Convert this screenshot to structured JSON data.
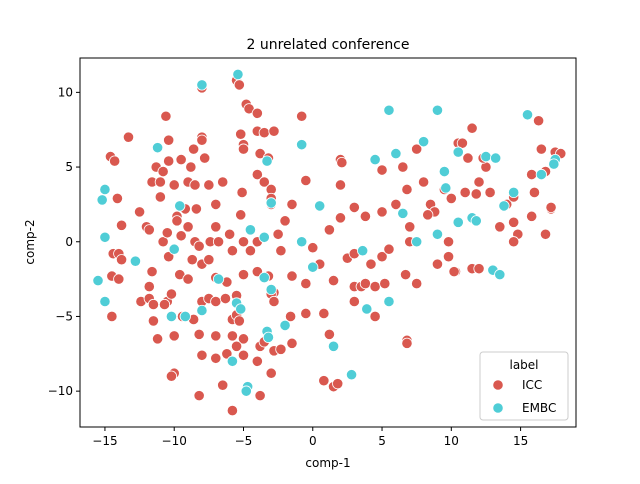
{
  "chart_data": {
    "type": "scatter",
    "title": "2 unrelated conference",
    "xlabel": "comp-1",
    "ylabel": "comp-2",
    "xlim": [
      -16.8,
      19.0
    ],
    "ylim": [
      -12.4,
      12.3
    ],
    "xticks": [
      -15,
      -10,
      -5,
      0,
      5,
      10,
      15
    ],
    "yticks": [
      -10,
      -5,
      0,
      5,
      10
    ],
    "grid": false,
    "legend": {
      "title": "label",
      "placement": "lower-right"
    },
    "series": [
      {
        "name": "ICC",
        "color": "#d9584f",
        "points": [
          [
            -14.6,
            5.7
          ],
          [
            -14.3,
            5.4
          ],
          [
            -13.3,
            7.0
          ],
          [
            -14.1,
            2.9
          ],
          [
            -13.8,
            1.1
          ],
          [
            -14.4,
            -0.8
          ],
          [
            -14.0,
            -0.8
          ],
          [
            -13.8,
            -1.2
          ],
          [
            -14.5,
            -2.3
          ],
          [
            -14.0,
            -2.5
          ],
          [
            -14.5,
            -5.0
          ],
          [
            -12.8,
            -1.3
          ],
          [
            -12.5,
            2.0
          ],
          [
            -12.0,
            1.0
          ],
          [
            -11.8,
            0.8
          ],
          [
            -11.6,
            4.0
          ],
          [
            -11.3,
            5.0
          ],
          [
            -11.0,
            3.0
          ],
          [
            -11.0,
            4.0
          ],
          [
            -10.8,
            4.7
          ],
          [
            -10.8,
            0.0
          ],
          [
            -10.5,
            0.6
          ],
          [
            -10.4,
            -1.0
          ],
          [
            -11.6,
            -2.0
          ],
          [
            -11.8,
            -3.0
          ],
          [
            -12.4,
            -4.0
          ],
          [
            -11.8,
            -3.8
          ],
          [
            -10.5,
            -4.0
          ],
          [
            -10.2,
            -3.5
          ],
          [
            -11.5,
            -5.3
          ],
          [
            -11.2,
            -6.5
          ],
          [
            -10.0,
            -6.3
          ],
          [
            -10.0,
            -8.8
          ],
          [
            -10.2,
            -9.0
          ],
          [
            -11.5,
            -4.2
          ],
          [
            -10.7,
            -4.2
          ],
          [
            -10.6,
            8.4
          ],
          [
            -10.4,
            6.8
          ],
          [
            -10.4,
            5.4
          ],
          [
            -10.0,
            3.8
          ],
          [
            -9.5,
            5.5
          ],
          [
            -9.0,
            4.0
          ],
          [
            -8.8,
            5.0
          ],
          [
            -8.6,
            6.2
          ],
          [
            -8.0,
            7.0
          ],
          [
            -8.0,
            6.8
          ],
          [
            -7.8,
            5.6
          ],
          [
            -8.0,
            10.3
          ],
          [
            -5.5,
            10.8
          ],
          [
            -5.3,
            10.5
          ],
          [
            -4.8,
            9.2
          ],
          [
            -4.6,
            8.9
          ],
          [
            -4.0,
            8.6
          ],
          [
            -4.0,
            7.4
          ],
          [
            -5.2,
            7.2
          ],
          [
            -5.0,
            6.5
          ],
          [
            -5.0,
            6.2
          ],
          [
            -3.5,
            7.3
          ],
          [
            -2.8,
            7.4
          ],
          [
            -3.8,
            5.9
          ],
          [
            -3.2,
            5.6
          ],
          [
            -4.0,
            4.5
          ],
          [
            -3.5,
            4.0
          ],
          [
            -3.0,
            3.5
          ],
          [
            -5.1,
            3.3
          ],
          [
            -6.5,
            4.0
          ],
          [
            -7.5,
            3.8
          ],
          [
            -7.0,
            2.5
          ],
          [
            -8.5,
            3.8
          ],
          [
            -8.4,
            2.2
          ],
          [
            -9.2,
            2.2
          ],
          [
            -9.8,
            1.7
          ],
          [
            -9.8,
            1.4
          ],
          [
            -9.0,
            1.0
          ],
          [
            -9.5,
            0.4
          ],
          [
            -8.5,
            0.0
          ],
          [
            -8.2,
            -0.3
          ],
          [
            -7.4,
            0.0
          ],
          [
            -7.0,
            1.0
          ],
          [
            -6.8,
            0.0
          ],
          [
            -6.0,
            0.5
          ],
          [
            -5.8,
            -0.6
          ],
          [
            -5.2,
            1.8
          ],
          [
            -5.0,
            0.0
          ],
          [
            -4.5,
            -0.6
          ],
          [
            -4.0,
            0.0
          ],
          [
            -3.0,
            2.9
          ],
          [
            -3.0,
            2.5
          ],
          [
            -2.5,
            0.5
          ],
          [
            -2.3,
            -0.6
          ],
          [
            -2.0,
            1.4
          ],
          [
            -1.5,
            2.5
          ],
          [
            -9.6,
            -2.2
          ],
          [
            -9.0,
            -2.5
          ],
          [
            -8.7,
            -1.2
          ],
          [
            -8.0,
            -1.5
          ],
          [
            -7.5,
            -1.2
          ],
          [
            -7.0,
            -2.4
          ],
          [
            -6.2,
            -2.7
          ],
          [
            -5.5,
            -3.6
          ],
          [
            -5.0,
            -2.2
          ],
          [
            -4.0,
            -2.0
          ],
          [
            -3.2,
            -2.3
          ],
          [
            -2.8,
            -3.4
          ],
          [
            -1.5,
            -2.3
          ],
          [
            -0.5,
            -2.8
          ],
          [
            -8.0,
            -4.0
          ],
          [
            -7.5,
            -3.8
          ],
          [
            -7.0,
            -4.0
          ],
          [
            -6.3,
            -3.8
          ],
          [
            -5.8,
            -5.2
          ],
          [
            -5.5,
            -4.9
          ],
          [
            -5.3,
            -5.3
          ],
          [
            -3.0,
            -3.5
          ],
          [
            -2.8,
            -4.0
          ],
          [
            -1.6,
            -5.0
          ],
          [
            -0.5,
            -4.8
          ],
          [
            0.8,
            -4.8
          ],
          [
            -9.4,
            -5.0
          ],
          [
            -9.2,
            -5.0
          ],
          [
            -8.6,
            -5.2
          ],
          [
            -8.2,
            -6.2
          ],
          [
            -7.0,
            -6.3
          ],
          [
            -5.8,
            -6.3
          ],
          [
            -5.0,
            -6.5
          ],
          [
            -3.8,
            -7.0
          ],
          [
            -3.5,
            -6.7
          ],
          [
            -4.0,
            -8.0
          ],
          [
            -3.0,
            -8.8
          ],
          [
            -2.8,
            -7.3
          ],
          [
            -2.3,
            -7.2
          ],
          [
            -1.5,
            -6.8
          ],
          [
            1.2,
            -6.2
          ],
          [
            -5.5,
            -7.0
          ],
          [
            -5.0,
            -7.6
          ],
          [
            -5.8,
            -8.0
          ],
          [
            -6.2,
            -7.5
          ],
          [
            -7.0,
            -7.8
          ],
          [
            -8.0,
            -7.6
          ],
          [
            -8.2,
            -10.3
          ],
          [
            -6.5,
            -9.6
          ],
          [
            -5.8,
            -11.3
          ],
          [
            -3.8,
            -10.3
          ],
          [
            0.8,
            -9.3
          ],
          [
            1.5,
            -9.7
          ],
          [
            1.8,
            -9.5
          ],
          [
            -0.8,
            8.4
          ],
          [
            -0.5,
            4.1
          ],
          [
            0.0,
            -0.4
          ],
          [
            0.5,
            -1.5
          ],
          [
            1.2,
            0.8
          ],
          [
            1.5,
            -2.6
          ],
          [
            2.0,
            5.5
          ],
          [
            2.1,
            5.3
          ],
          [
            2.0,
            3.8
          ],
          [
            2.0,
            1.6
          ],
          [
            2.5,
            -1.1
          ],
          [
            3.0,
            2.3
          ],
          [
            3.0,
            -0.8
          ],
          [
            3.0,
            -3.0
          ],
          [
            3.5,
            -3.0
          ],
          [
            3.0,
            -4.0
          ],
          [
            3.8,
            1.7
          ],
          [
            3.8,
            -2.8
          ],
          [
            4.2,
            -1.5
          ],
          [
            4.5,
            -5.0
          ],
          [
            4.5,
            -3.0
          ],
          [
            5.0,
            4.8
          ],
          [
            5.0,
            2.0
          ],
          [
            5.0,
            -1.0
          ],
          [
            5.2,
            -2.8
          ],
          [
            5.5,
            -0.5
          ],
          [
            6.0,
            2.5
          ],
          [
            6.5,
            5.0
          ],
          [
            6.8,
            3.5
          ],
          [
            7.0,
            1.0
          ],
          [
            7.5,
            6.2
          ],
          [
            7.5,
            -2.8
          ],
          [
            6.7,
            -2.2
          ],
          [
            6.8,
            -6.6
          ],
          [
            6.8,
            -6.8
          ],
          [
            7.5,
            0.0
          ],
          [
            8.0,
            4.0
          ],
          [
            8.5,
            2.5
          ],
          [
            8.8,
            2.0
          ],
          [
            9.0,
            0.5
          ],
          [
            9.0,
            -1.5
          ],
          [
            9.5,
            3.5
          ],
          [
            9.8,
            -1.0
          ],
          [
            10.0,
            2.9
          ],
          [
            10.3,
            -2.0
          ],
          [
            10.2,
            -2.0
          ],
          [
            10.5,
            6.6
          ],
          [
            10.8,
            6.6
          ],
          [
            11.0,
            3.3
          ],
          [
            11.2,
            5.6
          ],
          [
            11.5,
            7.6
          ],
          [
            11.5,
            -1.8
          ],
          [
            12.0,
            4.0
          ],
          [
            12.0,
            -1.8
          ],
          [
            12.5,
            5.0
          ],
          [
            12.8,
            3.3
          ],
          [
            13.5,
            1.0
          ],
          [
            14.0,
            2.5
          ],
          [
            14.5,
            3.0
          ],
          [
            14.5,
            1.3
          ],
          [
            14.8,
            0.5
          ],
          [
            15.8,
            1.7
          ],
          [
            15.8,
            4.5
          ],
          [
            16.0,
            3.3
          ],
          [
            16.3,
            8.1
          ],
          [
            16.5,
            6.2
          ],
          [
            16.8,
            4.7
          ],
          [
            17.2,
            2.2
          ],
          [
            17.2,
            2.3
          ],
          [
            17.5,
            6.0
          ],
          [
            17.9,
            5.9
          ],
          [
            16.8,
            0.5
          ],
          [
            14.5,
            0.0
          ],
          [
            9.8,
            0.0
          ],
          [
            8.3,
            1.8
          ],
          [
            7.0,
            0.0
          ],
          [
            11.8,
            3.2
          ],
          [
            12.3,
            5.6
          ]
        ]
      },
      {
        "name": "EMBC",
        "color": "#4fcdd6",
        "points": [
          [
            -15.2,
            2.8
          ],
          [
            -15.0,
            3.5
          ],
          [
            -15.0,
            0.3
          ],
          [
            -15.0,
            -4.0
          ],
          [
            -15.5,
            -2.6
          ],
          [
            -12.8,
            -1.3
          ],
          [
            -11.2,
            6.3
          ],
          [
            -10.0,
            -0.5
          ],
          [
            -9.6,
            2.4
          ],
          [
            -8.0,
            -4.6
          ],
          [
            -8.0,
            10.5
          ],
          [
            -6.8,
            -2.5
          ],
          [
            -5.4,
            11.2
          ],
          [
            -4.5,
            0.8
          ],
          [
            -5.5,
            -4.1
          ],
          [
            -5.2,
            -4.5
          ],
          [
            -4.7,
            -9.7
          ],
          [
            -4.8,
            -10.0
          ],
          [
            -5.8,
            -8.0
          ],
          [
            -3.3,
            5.4
          ],
          [
            -3.0,
            2.6
          ],
          [
            -3.5,
            0.3
          ],
          [
            -3.5,
            -2.4
          ],
          [
            -3.0,
            -3.2
          ],
          [
            -3.3,
            -6.0
          ],
          [
            -3.2,
            -6.4
          ],
          [
            -2.0,
            -5.6
          ],
          [
            -0.8,
            6.5
          ],
          [
            -0.8,
            0.0
          ],
          [
            0.0,
            -1.7
          ],
          [
            0.5,
            2.4
          ],
          [
            1.5,
            -7.0
          ],
          [
            2.8,
            -8.9
          ],
          [
            3.6,
            -0.6
          ],
          [
            4.5,
            5.5
          ],
          [
            5.5,
            8.8
          ],
          [
            5.5,
            -4.0
          ],
          [
            6.0,
            5.9
          ],
          [
            6.5,
            1.9
          ],
          [
            7.5,
            0.0
          ],
          [
            8.0,
            6.7
          ],
          [
            9.0,
            8.8
          ],
          [
            9.5,
            4.7
          ],
          [
            9.6,
            3.6
          ],
          [
            10.5,
            1.3
          ],
          [
            11.5,
            1.6
          ],
          [
            11.8,
            1.4
          ],
          [
            12.5,
            5.7
          ],
          [
            13.0,
            -1.9
          ],
          [
            13.2,
            5.6
          ],
          [
            13.5,
            -2.2
          ],
          [
            13.8,
            2.4
          ],
          [
            14.5,
            3.3
          ],
          [
            15.5,
            8.5
          ],
          [
            16.5,
            4.5
          ],
          [
            17.5,
            5.5
          ],
          [
            17.4,
            5.2
          ],
          [
            9.0,
            0.5
          ],
          [
            10.5,
            6.0
          ],
          [
            3.9,
            -4.5
          ],
          [
            -9.2,
            -5.0
          ],
          [
            -10.2,
            -5.0
          ]
        ]
      }
    ]
  }
}
